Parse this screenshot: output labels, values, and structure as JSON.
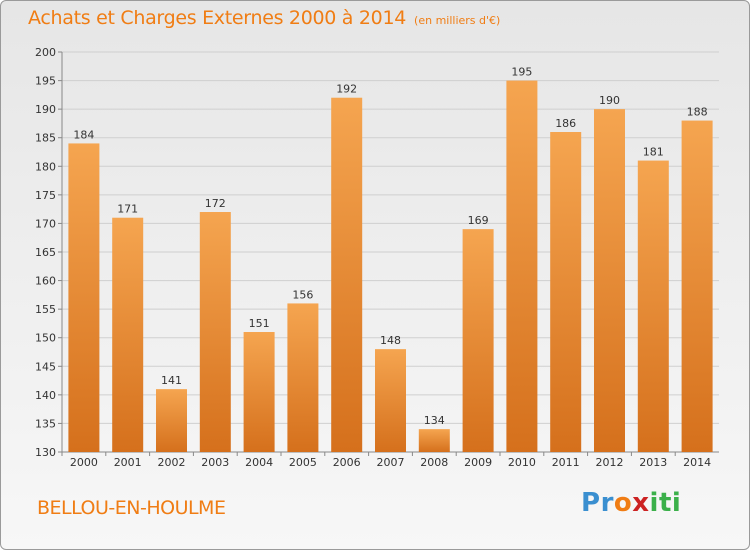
{
  "header": {
    "title": "Achats et Charges Externes 2000 à 2014",
    "unit": "(en milliers d'€)"
  },
  "footer": {
    "location": "BELLOU-EN-HOULME",
    "logo_letters": [
      "P",
      "r",
      "o",
      "x",
      "i",
      "t",
      "i"
    ],
    "logo_colors": [
      "#3a8fd0",
      "#3a8fd0",
      "#f07d14",
      "#cc2222",
      "#3bb04a",
      "#3bb04a",
      "#3bb04a"
    ]
  },
  "colors": {
    "accent": "#f07d14",
    "bar_light": "#f5a550",
    "bar_dark": "#d5701c"
  },
  "chart_data": {
    "type": "bar",
    "categories": [
      "2000",
      "2001",
      "2002",
      "2003",
      "2004",
      "2005",
      "2006",
      "2007",
      "2008",
      "2009",
      "2010",
      "2011",
      "2012",
      "2013",
      "2014"
    ],
    "values": [
      184,
      171,
      141,
      172,
      151,
      156,
      192,
      148,
      134,
      169,
      195,
      186,
      190,
      181,
      188
    ],
    "ylim": [
      130,
      200
    ],
    "yticks": [
      130,
      135,
      140,
      145,
      150,
      155,
      160,
      165,
      170,
      175,
      180,
      185,
      190,
      195,
      200
    ],
    "grid": true
  }
}
